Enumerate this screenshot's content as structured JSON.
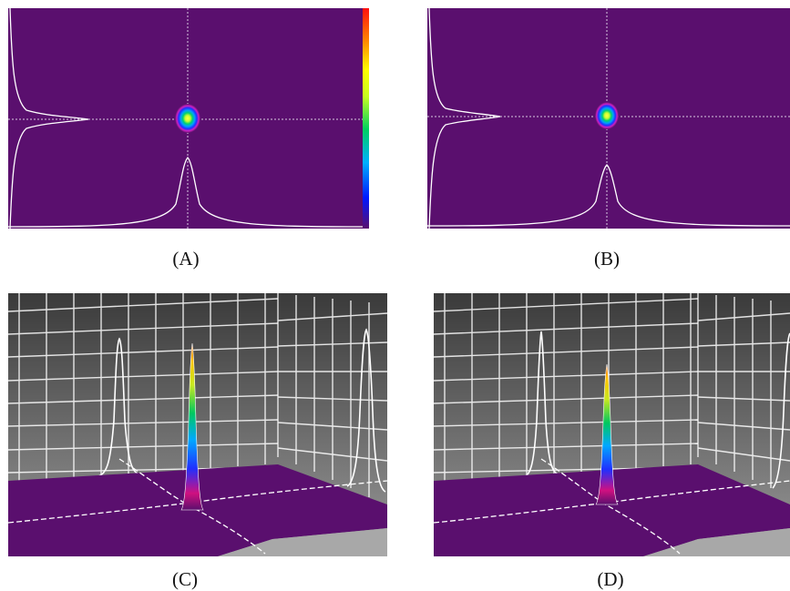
{
  "figure": {
    "panels": [
      {
        "id": "A",
        "label": "(A)",
        "view": "2d-beam-profile",
        "colorbar": true
      },
      {
        "id": "B",
        "label": "(B)",
        "view": "2d-beam-profile",
        "colorbar": false
      },
      {
        "id": "C",
        "label": "(C)",
        "view": "3d-beam-profile"
      },
      {
        "id": "D",
        "label": "(D)",
        "view": "3d-beam-profile"
      }
    ],
    "colors": {
      "background_purple": "#5a0f6e",
      "profile_line": "#ffffff",
      "grid_wall": "#6e6e6e",
      "floor_gray": "#a8a8a8"
    }
  }
}
